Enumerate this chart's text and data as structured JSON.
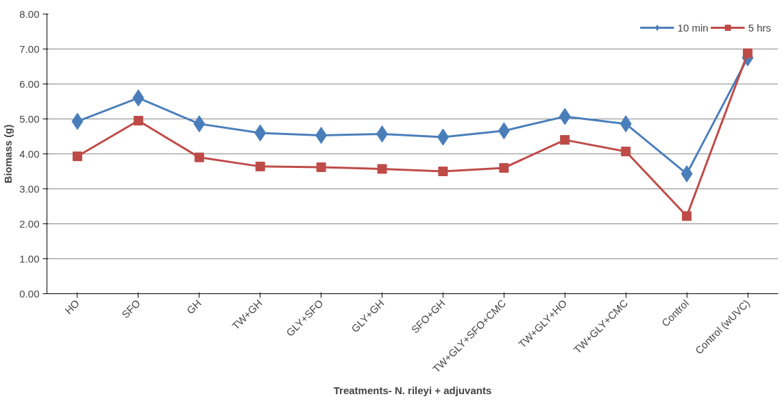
{
  "chart_data": {
    "type": "line",
    "xlabel": "Treatments- N. rileyi + adjuvants",
    "ylabel": "Biomass (g)",
    "categories": [
      "HO",
      "SFO",
      "GH",
      "TW+GH",
      "GLY+SFO",
      "GLY+GH",
      "SFO+GH",
      "TW+GLY+SFO+CMC",
      "TW+GLY+HO",
      "TW+GLY+CMC",
      "Control",
      "Control (wUVC)"
    ],
    "series": [
      {
        "name": "10 min",
        "color": "#4a7ebb",
        "marker": "diamond",
        "values": [
          4.93,
          5.6,
          4.86,
          4.6,
          4.53,
          4.57,
          4.48,
          4.66,
          5.07,
          4.86,
          3.43,
          6.75
        ]
      },
      {
        "name": "5 hrs",
        "color": "#be4b48",
        "marker": "square",
        "values": [
          3.93,
          4.95,
          3.9,
          3.64,
          3.62,
          3.57,
          3.5,
          3.6,
          4.4,
          4.07,
          2.22,
          6.88
        ]
      }
    ],
    "ylim": [
      0,
      8
    ],
    "yticks": [
      {
        "value": 0,
        "label": "0.00"
      },
      {
        "value": 1,
        "label": "1.00"
      },
      {
        "value": 2,
        "label": "2.00"
      },
      {
        "value": 3,
        "label": "3.00"
      },
      {
        "value": 4,
        "label": "4.00"
      },
      {
        "value": 5,
        "label": "5.00"
      },
      {
        "value": 6,
        "label": "6.00"
      },
      {
        "value": 7,
        "label": "7.00"
      },
      {
        "value": 8,
        "label": "8.00"
      }
    ],
    "grid": "y",
    "legend": "top right",
    "line_style": "solid"
  }
}
